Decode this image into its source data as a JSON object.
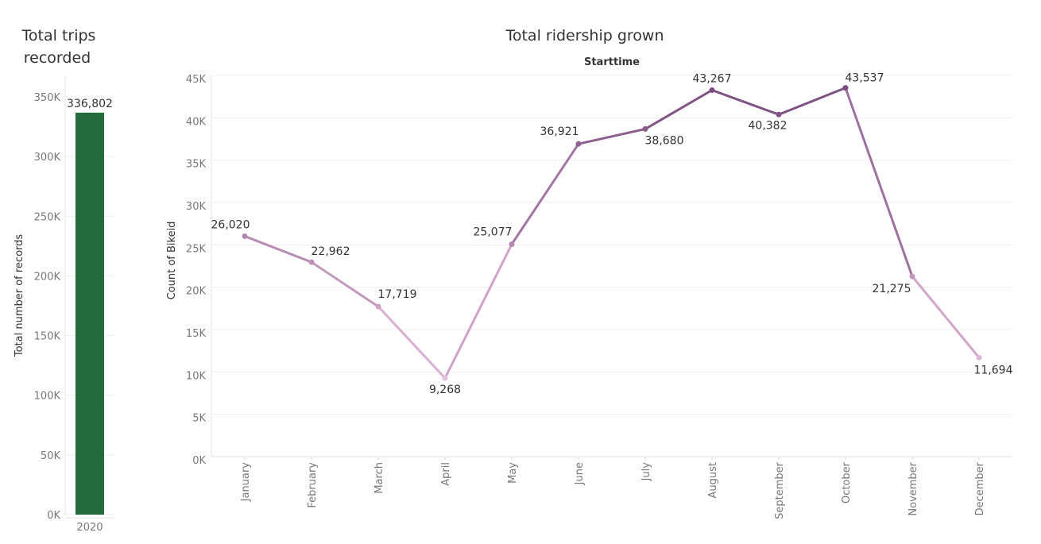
{
  "chart_data": [
    {
      "type": "bar",
      "title": "Total trips recorded",
      "title_lines": [
        "Total trips",
        "recorded"
      ],
      "ylabel": "Total number of records",
      "xlabel": "",
      "categories": [
        "2020"
      ],
      "values": [
        336802
      ],
      "value_labels": [
        "336,802"
      ],
      "ylim": [
        0,
        350000
      ],
      "yticks": [
        0,
        50000,
        100000,
        150000,
        200000,
        250000,
        300000,
        350000
      ],
      "ytick_labels": [
        "0K",
        "50K",
        "100K",
        "150K",
        "200K",
        "250K",
        "300K",
        "350K"
      ],
      "grid": true,
      "bar_color": "#256B3E"
    },
    {
      "type": "line",
      "title": "Total ridership grown",
      "subtitle": "Starttime",
      "ylabel": "Count of Bikeid",
      "xlabel": "",
      "categories": [
        "January",
        "February",
        "March",
        "April",
        "May",
        "June",
        "July",
        "August",
        "September",
        "October",
        "November",
        "December"
      ],
      "values": [
        26020,
        22962,
        17719,
        9268,
        25077,
        36921,
        38680,
        43267,
        40382,
        43537,
        21275,
        11694
      ],
      "value_labels": [
        "26,020",
        "22,962",
        "17,719",
        "9,268",
        "25,077",
        "36,921",
        "38,680",
        "43,267",
        "40,382",
        "43,537",
        "21,275",
        "11,694"
      ],
      "ylim": [
        0,
        45000
      ],
      "yticks": [
        0,
        5000,
        10000,
        15000,
        20000,
        25000,
        30000,
        35000,
        40000,
        45000
      ],
      "ytick_labels": [
        "0K",
        "5K",
        "10K",
        "15K",
        "20K",
        "25K",
        "30K",
        "35K",
        "40K",
        "45K"
      ],
      "grid": true,
      "color_scale": [
        "#E8BEDD",
        "#7A4C7F"
      ]
    }
  ]
}
